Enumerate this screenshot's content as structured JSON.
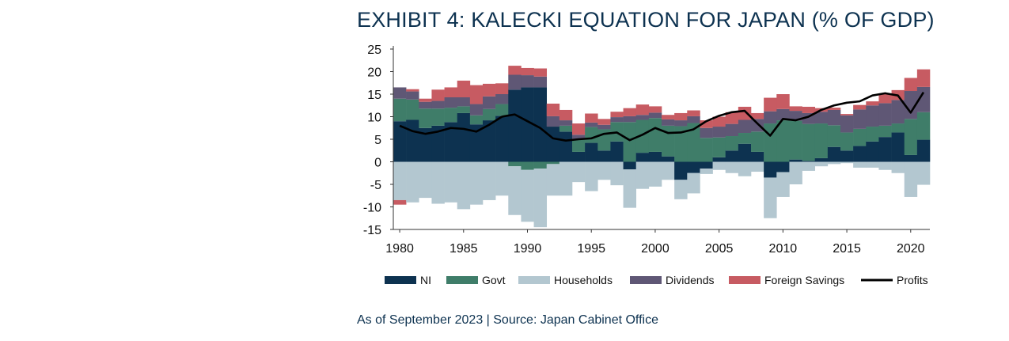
{
  "chart_data": {
    "type": "bar",
    "title": "EXHIBIT 4: KALECKI EQUATION FOR JAPAN (% OF GDP)",
    "xlabel": "",
    "ylabel": "",
    "x": [
      1980,
      1981,
      1982,
      1983,
      1984,
      1985,
      1986,
      1987,
      1988,
      1989,
      1990,
      1991,
      1992,
      1993,
      1994,
      1995,
      1996,
      1997,
      1998,
      1999,
      2000,
      2001,
      2002,
      2003,
      2004,
      2005,
      2006,
      2007,
      2008,
      2009,
      2010,
      2011,
      2012,
      2013,
      2014,
      2015,
      2016,
      2017,
      2018,
      2019,
      2020,
      2021
    ],
    "x_ticks": [
      "1980",
      "1985",
      "1990",
      "1995",
      "2000",
      "2005",
      "2010",
      "2015",
      "2020"
    ],
    "ylim": [
      -15,
      25
    ],
    "y_ticks": [
      "25",
      "20",
      "15",
      "10",
      "5",
      "0",
      "-5",
      "-10",
      "-15"
    ],
    "grid": false,
    "legend_position": "bottom",
    "series": [
      {
        "name": "NI",
        "kind": "bar",
        "color": "#0d3250",
        "values": [
          9,
          9.3,
          7.5,
          8,
          8.8,
          10.8,
          8.3,
          9.2,
          10.2,
          16,
          16.5,
          16.5,
          7.8,
          6.7,
          2.2,
          4.2,
          2.5,
          4.5,
          -1.7,
          2,
          2.2,
          1.2,
          -4,
          -2.5,
          -1.5,
          1,
          2.5,
          4,
          2.2,
          -3.5,
          -2.3,
          0.5,
          0.2,
          0.8,
          3.3,
          2.5,
          3.5,
          4.5,
          5.5,
          6.5,
          1.5,
          4.9
        ]
      },
      {
        "name": "Govt",
        "kind": "bar",
        "color": "#3f7d69",
        "values": [
          5,
          4.5,
          4.3,
          3.8,
          3.2,
          1.5,
          2,
          2.5,
          2.6,
          -1,
          -1.8,
          -1.5,
          -0.5,
          1.3,
          2.8,
          3.5,
          4.7,
          4.3,
          8.8,
          7.3,
          7.5,
          6.8,
          7.9,
          8.6,
          5.3,
          4.4,
          3.2,
          2.4,
          4.5,
          8.5,
          9.2,
          8.6,
          8.2,
          7.7,
          4.8,
          4,
          3.8,
          3.3,
          2.5,
          2,
          8,
          6.1
        ]
      },
      {
        "name": "Households",
        "kind": "bar",
        "color": "#b3c7d0",
        "values": [
          -8.5,
          -9,
          -8,
          -9.3,
          -9,
          -10.5,
          -9.5,
          -8.5,
          -7.5,
          -10.8,
          -11.5,
          -13,
          -7,
          -7.5,
          -4.5,
          -6.5,
          -4,
          -5.2,
          -8.5,
          -6,
          -5.5,
          -4,
          -4.3,
          -4.5,
          -1.2,
          -1.8,
          -2.5,
          -3.2,
          -2.2,
          -9,
          -5.5,
          -5,
          -2,
          -1,
          -0.5,
          -0.3,
          -1.3,
          -1.3,
          -1.8,
          -2.5,
          -7.8,
          -5.1
        ]
      },
      {
        "name": "Dividends",
        "kind": "bar",
        "color": "#5f5775",
        "values": [
          2.5,
          1.8,
          1.5,
          1.7,
          2.3,
          2,
          2.5,
          2.8,
          2.2,
          3.3,
          2.7,
          2.4,
          2.3,
          1.2,
          1,
          1,
          1,
          1.1,
          1.3,
          1.1,
          1.2,
          1.4,
          1.3,
          1.5,
          2.2,
          2.4,
          2.7,
          2.9,
          2.8,
          2.7,
          2.5,
          2.2,
          2.4,
          2.6,
          3.4,
          3.8,
          4.3,
          4.7,
          5,
          5.2,
          6.2,
          5.6
        ]
      },
      {
        "name": "Foreign Savings",
        "kind": "bar",
        "color": "#c75b62",
        "values": [
          -1,
          0.5,
          0.7,
          2.5,
          2.2,
          3.7,
          4.2,
          2.8,
          2.4,
          2,
          1.6,
          1.8,
          2.8,
          2.3,
          2.5,
          2,
          1.3,
          1.2,
          1.8,
          2.3,
          1.4,
          1,
          1.6,
          1.3,
          1.7,
          2.2,
          2.6,
          2.9,
          1.3,
          3,
          3.3,
          1,
          1.4,
          0.8,
          0.5,
          0.3,
          1,
          0.9,
          2.1,
          2.2,
          2.9,
          3.9
        ]
      },
      {
        "name": "Profits",
        "kind": "line",
        "color": "#000000",
        "values": [
          8,
          6.8,
          6.2,
          6.7,
          7.5,
          7.3,
          6.7,
          8.2,
          10,
          10.5,
          9,
          7.5,
          5.2,
          4.7,
          5,
          5.2,
          6.2,
          6.5,
          4.8,
          6,
          7.5,
          6.4,
          6.5,
          7.2,
          9,
          10.2,
          11,
          11.3,
          8.5,
          5.8,
          9.5,
          9.2,
          10,
          11.5,
          12.5,
          13.1,
          13.4,
          14.7,
          15.2,
          14.7,
          10.9,
          15.4
        ]
      }
    ]
  },
  "source_note": "As of September 2023 | Source: Japan Cabinet Office"
}
